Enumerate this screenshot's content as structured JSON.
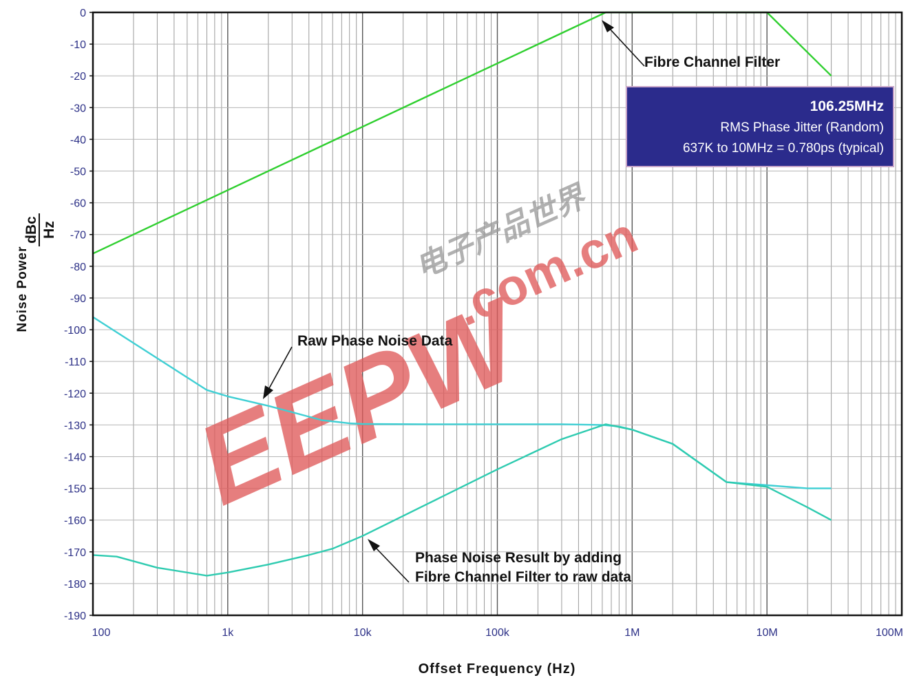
{
  "colors": {
    "filter_line": "#2fcf2f",
    "raw_line": "#3fcfd4",
    "result_line": "#2ecbb0",
    "grid": "#9a9a9a",
    "tick_text": "#2b2f86",
    "info_box": "#2b2b8c",
    "watermark": "#e05a5a"
  },
  "chart_data": {
    "type": "line",
    "x_scale": "log",
    "xlim": [
      100,
      100000000
    ],
    "ylim": [
      -190,
      0
    ],
    "grid": true,
    "xlabel": "Offset Frequency (Hz)",
    "ylabel": "Noise Power",
    "ylabel_unit_num": "dBc",
    "ylabel_unit_den": "Hz",
    "x_ticks": [
      100,
      1000,
      10000,
      100000,
      1000000,
      10000000,
      100000000
    ],
    "x_tick_labels": [
      "100",
      "1k",
      "10k",
      "100k",
      "1M",
      "10M",
      "100M"
    ],
    "y_ticks": [
      0,
      -10,
      -20,
      -30,
      -40,
      -50,
      -60,
      -70,
      -80,
      -90,
      -100,
      -110,
      -120,
      -130,
      -140,
      -150,
      -160,
      -170,
      -180,
      -190
    ],
    "y_tick_labels": [
      "0",
      "-10",
      "-20",
      "-30",
      "-40",
      "-50",
      "-60",
      "-70",
      "-80",
      "-90",
      "-100",
      "-110",
      "-120",
      "-130",
      "-140",
      "-150",
      "-160",
      "-170",
      "-180",
      "-190"
    ],
    "series": [
      {
        "key": "filter",
        "x": [
          100,
          637000,
          10000000,
          30000000
        ],
        "y": [
          -76,
          0,
          0,
          -20
        ]
      },
      {
        "key": "raw",
        "x": [
          100,
          300,
          700,
          1000,
          2000,
          3000,
          5000,
          8000,
          10000,
          30000,
          100000,
          300000,
          600000,
          800000,
          1000000,
          2000000,
          5000000,
          10000000,
          20000000,
          30000000
        ],
        "y": [
          -96,
          -109,
          -119,
          -121,
          -124,
          -126,
          -128.5,
          -129.5,
          -129.7,
          -129.8,
          -129.8,
          -129.8,
          -130,
          -130.5,
          -131.5,
          -136,
          -148,
          -149,
          -150,
          -150
        ]
      },
      {
        "key": "result",
        "x": [
          100,
          150,
          300,
          700,
          1000,
          2000,
          4000,
          6000,
          10000,
          30000,
          100000,
          300000,
          637000,
          1000000,
          2000000,
          5000000,
          10000000,
          20000000,
          30000000
        ],
        "y": [
          -171,
          -171.5,
          -175,
          -177.5,
          -176.5,
          -174,
          -171,
          -169,
          -165,
          -155,
          -144,
          -134.5,
          -129.8,
          -131.5,
          -136,
          -148,
          -149.5,
          -156,
          -160
        ]
      }
    ]
  },
  "annotations": {
    "filter_label": "Fibre Channel Filter",
    "raw_label": "Raw Phase Noise Data",
    "result_label_line1": "Phase Noise Result by adding",
    "result_label_line2": "Fibre Channel Filter to raw data"
  },
  "info_box": {
    "title": "106.25MHz",
    "line1": "RMS Phase Jitter (Random)",
    "line2": "637K to 10MHz = 0.780ps (typical)"
  },
  "watermark": {
    "logo": "EEPW",
    "site": ".com.cn",
    "chinese": "电子产品世界"
  }
}
